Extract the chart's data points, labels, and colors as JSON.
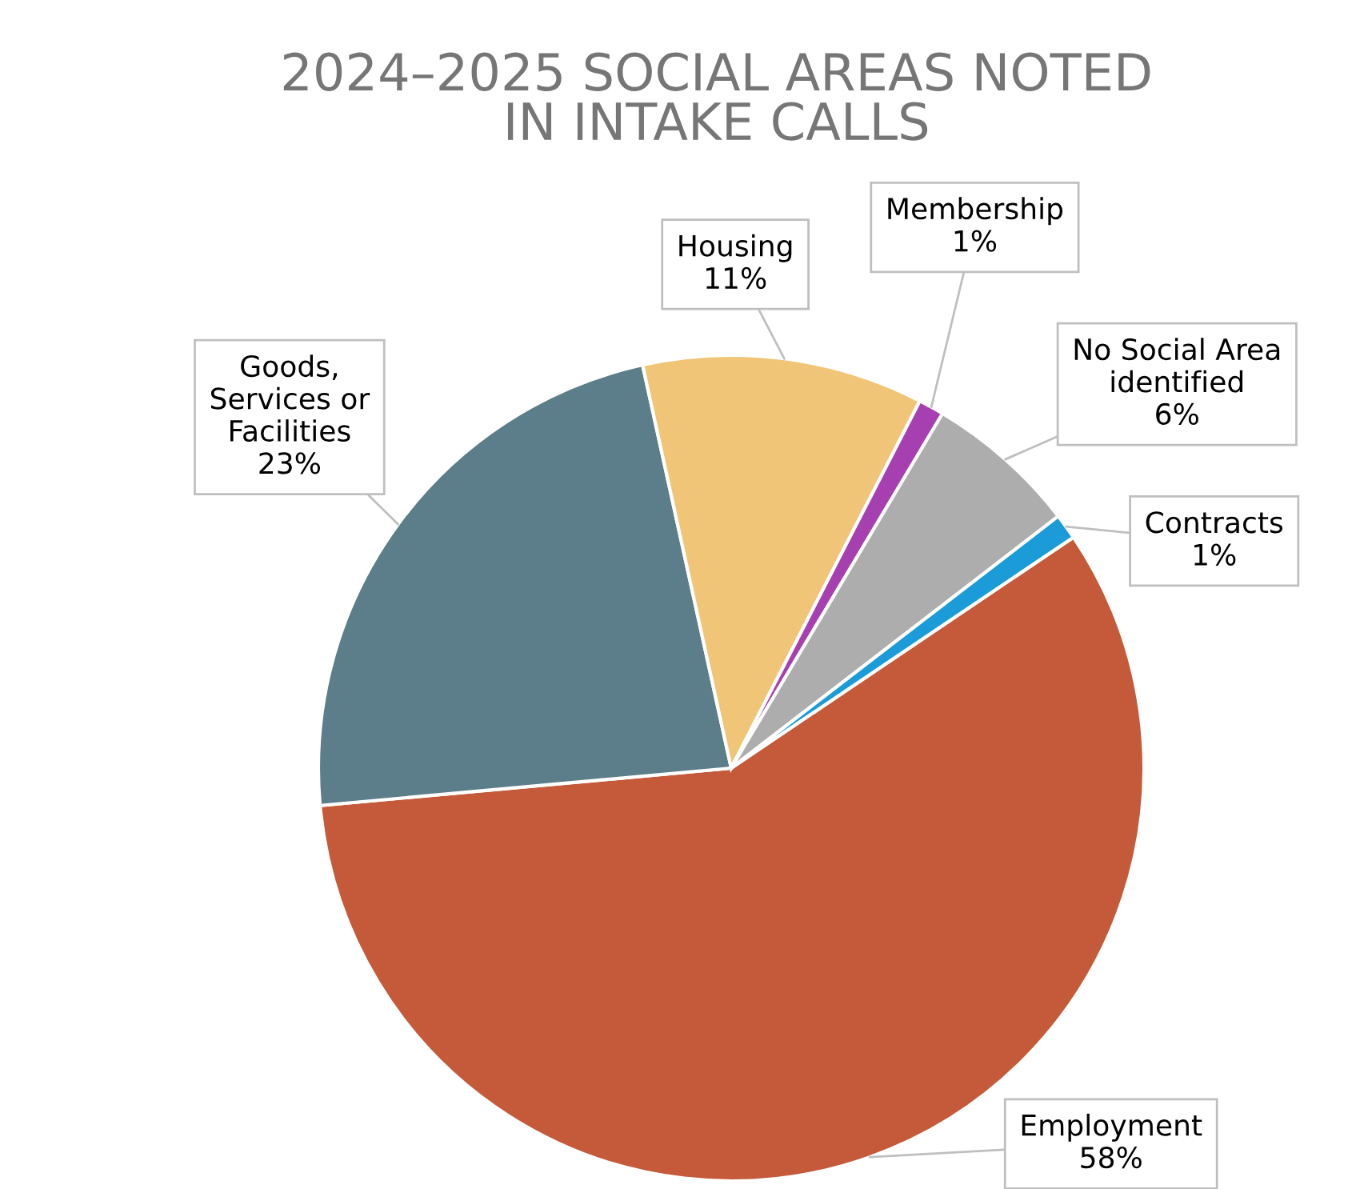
{
  "chart_data": {
    "type": "pie",
    "title": "2024–2025 SOCIAL AREAS NOTED IN INTAKE CALLS",
    "categories": [
      "Employment",
      "Goods, Services or Facilities",
      "Housing",
      "Membership",
      "No Social Area identified",
      "Contracts"
    ],
    "values": [
      58,
      23,
      11,
      1,
      6,
      1
    ],
    "value_labels": [
      "58%",
      "23%",
      "11%",
      "1%",
      "6%",
      "1%"
    ],
    "colors": [
      "#c55a3b",
      "#5c7d8a",
      "#f0c577",
      "#a63fb0",
      "#adadad",
      "#1b9bd7"
    ]
  }
}
